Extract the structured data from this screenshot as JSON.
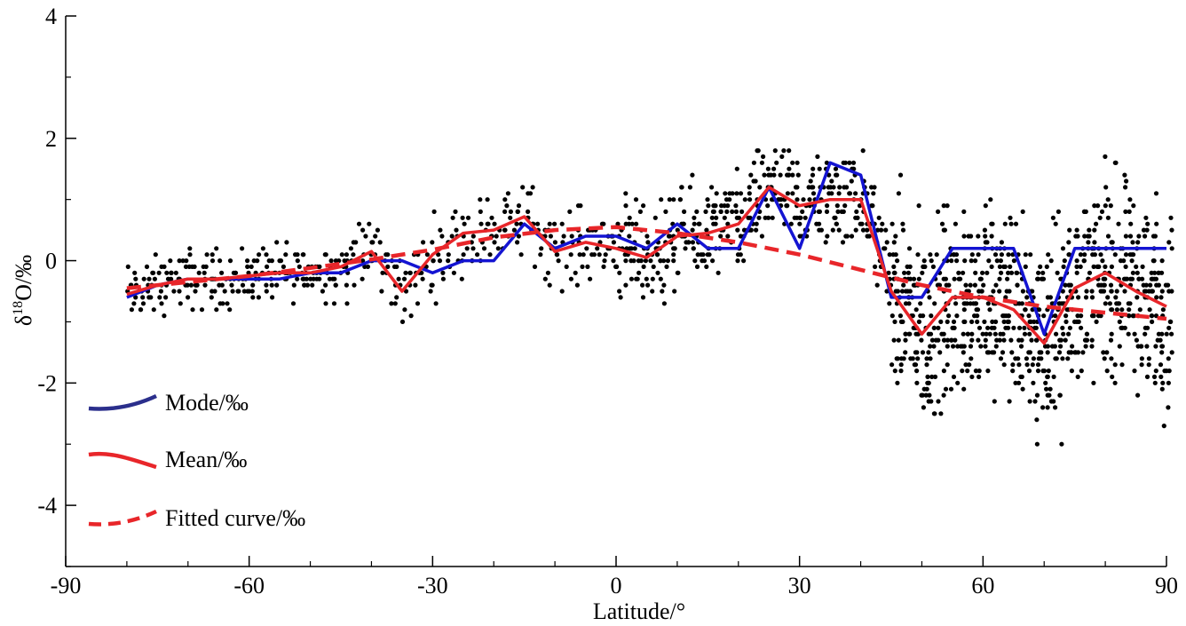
{
  "chart_data": {
    "type": "line",
    "title": "",
    "xlabel": "Latitude/°",
    "ylabel_main": "δ",
    "ylabel_sup": "18",
    "ylabel_rest": "O/‰",
    "xlim": [
      -90,
      90
    ],
    "ylim": [
      -5,
      4
    ],
    "xticks": [
      -90,
      -60,
      -30,
      0,
      30,
      60,
      90
    ],
    "yticks": [
      -4,
      -2,
      0,
      2,
      4
    ],
    "xtick_labels": [
      "-90",
      "-60",
      "-30",
      "0",
      "30",
      "60",
      "90"
    ],
    "ytick_labels": [
      "-4",
      "-2",
      "0",
      "2",
      "4"
    ],
    "grid": false,
    "legend_position": "left",
    "series": [
      {
        "name": "Mode/‰",
        "color": "#1414d2",
        "style": "solid",
        "x": [
          -80,
          -75,
          -70,
          -65,
          -60,
          -55,
          -50,
          -45,
          -40,
          -35,
          -30,
          -25,
          -20,
          -15,
          -10,
          -5,
          0,
          5,
          10,
          15,
          20,
          25,
          30,
          35,
          40,
          45,
          50,
          55,
          60,
          65,
          70,
          75,
          80,
          85,
          90
        ],
        "y": [
          -0.6,
          -0.4,
          -0.3,
          -0.3,
          -0.3,
          -0.3,
          -0.2,
          -0.2,
          0.0,
          0.0,
          -0.2,
          0.0,
          0.0,
          0.6,
          0.2,
          0.4,
          0.4,
          0.2,
          0.6,
          0.2,
          0.2,
          1.2,
          0.2,
          1.6,
          1.4,
          -0.6,
          -0.6,
          0.2,
          0.2,
          0.2,
          -1.2,
          0.2,
          0.2,
          0.2,
          0.2
        ]
      },
      {
        "name": "Mean/‰",
        "color": "#e8262a",
        "style": "solid",
        "x": [
          -80,
          -75,
          -70,
          -65,
          -60,
          -55,
          -50,
          -45,
          -40,
          -35,
          -30,
          -25,
          -20,
          -15,
          -10,
          -5,
          0,
          5,
          10,
          15,
          20,
          25,
          30,
          35,
          40,
          45,
          50,
          55,
          60,
          65,
          70,
          75,
          80,
          85,
          90
        ],
        "y": [
          -0.55,
          -0.4,
          -0.3,
          -0.3,
          -0.25,
          -0.2,
          -0.2,
          -0.1,
          0.15,
          -0.5,
          0.1,
          0.45,
          0.5,
          0.72,
          0.15,
          0.3,
          0.2,
          0.05,
          0.4,
          0.45,
          0.6,
          1.2,
          0.9,
          1.0,
          1.0,
          -0.5,
          -1.2,
          -0.6,
          -0.6,
          -0.8,
          -1.35,
          -0.45,
          -0.2,
          -0.5,
          -0.75
        ]
      },
      {
        "name": "Fitted curve/‰",
        "color": "#e8262a",
        "style": "dashed",
        "x": [
          -80,
          -70,
          -60,
          -50,
          -40,
          -30,
          -20,
          -10,
          0,
          10,
          20,
          30,
          40,
          50,
          60,
          70,
          80,
          90
        ],
        "y": [
          -0.45,
          -0.35,
          -0.25,
          -0.12,
          0.02,
          0.18,
          0.38,
          0.5,
          0.55,
          0.45,
          0.3,
          0.1,
          -0.15,
          -0.4,
          -0.6,
          -0.75,
          -0.85,
          -0.95
        ]
      }
    ],
    "scatter_note_color": "#000000"
  }
}
